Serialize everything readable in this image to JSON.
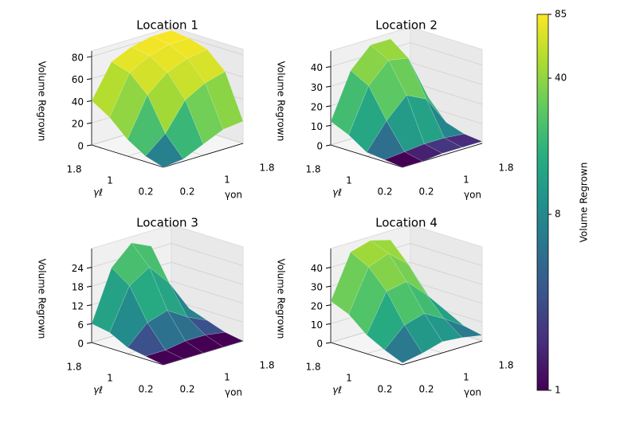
{
  "chart_data": [
    {
      "type": "surface3d",
      "title": "Location 1",
      "xlabel": "γon",
      "ylabel": "γℓ",
      "zlabel": "Volume Regrown",
      "x": [
        0.2,
        0.6,
        1.0,
        1.4,
        1.8
      ],
      "y": [
        0.2,
        0.6,
        1.0,
        1.4,
        1.8
      ],
      "z": [
        [
          0,
          2,
          10,
          18,
          20
        ],
        [
          5,
          20,
          45,
          55,
          60
        ],
        [
          15,
          50,
          65,
          72,
          75
        ],
        [
          30,
          65,
          75,
          80,
          80
        ],
        [
          40,
          70,
          78,
          82,
          82
        ]
      ],
      "xlim": [
        0.2,
        1.8
      ],
      "ylim": [
        0.2,
        1.8
      ],
      "zlim": [
        0,
        85
      ],
      "xticks": [
        0.2,
        1.0,
        1.8
      ],
      "yticks": [
        0.2,
        1.0,
        1.8
      ],
      "zticks": [
        0,
        20,
        40,
        60,
        80
      ]
    },
    {
      "type": "surface3d",
      "title": "Location 2",
      "xlabel": "γon",
      "ylabel": "γℓ",
      "zlabel": "Volume Regrown",
      "x": [
        0.2,
        0.6,
        1.0,
        1.4,
        1.8
      ],
      "y": [
        0.2,
        0.6,
        1.0,
        1.4,
        1.8
      ],
      "z": [
        [
          0,
          0,
          1,
          1,
          1
        ],
        [
          1,
          2,
          3,
          3,
          2
        ],
        [
          2,
          15,
          25,
          20,
          5
        ],
        [
          8,
          30,
          40,
          38,
          15
        ],
        [
          12,
          35,
          45,
          45,
          20
        ]
      ],
      "xlim": [
        0.2,
        1.8
      ],
      "ylim": [
        0.2,
        1.8
      ],
      "zlim": [
        0,
        48
      ],
      "xticks": [
        0.2,
        1.0,
        1.8
      ],
      "yticks": [
        0.2,
        1.0,
        1.8
      ],
      "zticks": [
        0,
        10,
        20,
        30,
        40
      ]
    },
    {
      "type": "surface3d",
      "title": "Location 3",
      "xlabel": "γon",
      "ylabel": "γℓ",
      "zlabel": "Volume Regrown",
      "x": [
        0.2,
        0.6,
        1.0,
        1.4,
        1.8
      ],
      "y": [
        0.2,
        0.6,
        1.0,
        1.4,
        1.8
      ],
      "z": [
        [
          0,
          0,
          0,
          0,
          0
        ],
        [
          1,
          1,
          2,
          2,
          1
        ],
        [
          2,
          8,
          10,
          6,
          3
        ],
        [
          5,
          18,
          22,
          15,
          5
        ],
        [
          6,
          22,
          28,
          25,
          8
        ]
      ],
      "xlim": [
        0.2,
        1.8
      ],
      "ylim": [
        0.2,
        1.8
      ],
      "zlim": [
        0,
        30
      ],
      "xticks": [
        0.2,
        1.0,
        1.8
      ],
      "yticks": [
        0.2,
        1.0,
        1.8
      ],
      "zticks": [
        0,
        6,
        12,
        18,
        24
      ]
    },
    {
      "type": "surface3d",
      "title": "Location 4",
      "xlabel": "γon",
      "ylabel": "γℓ",
      "zlabel": "Volume Regrown",
      "x": [
        0.2,
        0.6,
        1.0,
        1.4,
        1.8
      ],
      "y": [
        0.2,
        0.6,
        1.0,
        1.4,
        1.8
      ],
      "z": [
        [
          1,
          3,
          6,
          5,
          3
        ],
        [
          5,
          15,
          18,
          12,
          5
        ],
        [
          10,
          30,
          32,
          22,
          10
        ],
        [
          18,
          40,
          44,
          35,
          15
        ],
        [
          22,
          45,
          48,
          45,
          20
        ]
      ],
      "xlim": [
        0.2,
        1.8
      ],
      "ylim": [
        0.2,
        1.8
      ],
      "zlim": [
        0,
        50
      ],
      "xticks": [
        0.2,
        1.0,
        1.8
      ],
      "yticks": [
        0.2,
        1.0,
        1.8
      ],
      "zticks": [
        0,
        10,
        20,
        30,
        40
      ]
    }
  ],
  "colorbar": {
    "label": "Volume Regrown",
    "scale": "log",
    "lim": [
      1,
      85
    ],
    "ticks": [
      1,
      8,
      40,
      85
    ],
    "colors": [
      "#440154",
      "#472d7b",
      "#3b528b",
      "#2c728e",
      "#21918c",
      "#28ae80",
      "#5ec962",
      "#addc30",
      "#fde725"
    ]
  }
}
